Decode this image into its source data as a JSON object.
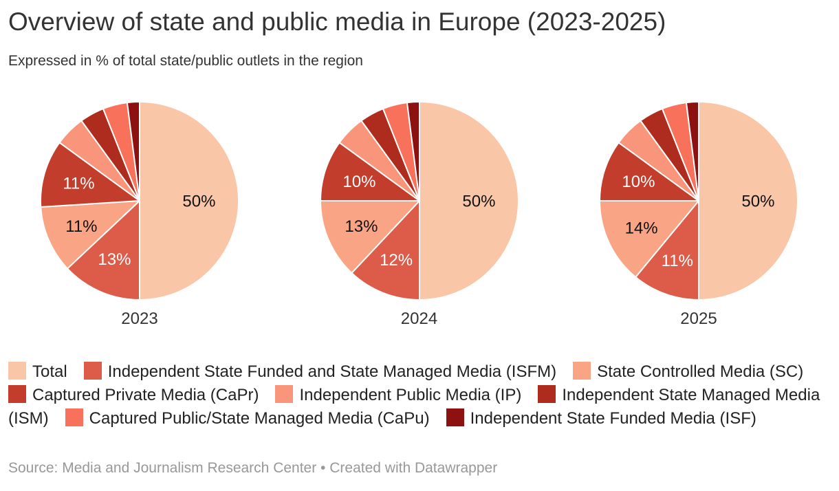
{
  "header": {
    "title": "Overview of state and public media in Europe (2023-2025)",
    "subtitle": "Expressed in % of total state/public outlets in the region"
  },
  "chart_data": {
    "type": "pie",
    "title": "Overview of state and public media in Europe (2023-2025)",
    "subtitle": "Expressed in % of total state/public outlets in the region",
    "unit": "%",
    "slice_order": "clockwise-from-top",
    "legend_position": "bottom",
    "category_ids": [
      "total",
      "isfm",
      "sc",
      "capr",
      "ip",
      "ism",
      "capu",
      "isf"
    ],
    "categories": [
      "Total",
      "Independent State Funded and State Managed Media (ISFM)",
      "State Controlled Media (SC)",
      "Captured Private Media (CaPr)",
      "Independent Public Media (IP)",
      "Independent State Managed Media (ISM)",
      "Captured Public/State Managed Media (CaPu)",
      "Independent State Funded Media (ISF)"
    ],
    "colors": [
      "#F9C6A7",
      "#DC5C49",
      "#F9A585",
      "#C33D2C",
      "#F9957B",
      "#AE2C1D",
      "#F7715B",
      "#8E1111"
    ],
    "label_text_colors": [
      "#111111",
      "#ffffff",
      "#111111",
      "#ffffff",
      "#ffffff",
      "#ffffff",
      "#ffffff",
      "#ffffff"
    ],
    "pies": [
      {
        "label": "2023",
        "values": [
          50,
          13,
          11,
          11,
          5,
          4,
          4,
          2
        ],
        "slice_labels": [
          "50%",
          "13%",
          "11%",
          "11%",
          "",
          "",
          "",
          ""
        ]
      },
      {
        "label": "2024",
        "values": [
          50,
          12,
          13,
          10,
          5,
          4,
          4,
          2
        ],
        "slice_labels": [
          "50%",
          "12%",
          "13%",
          "10%",
          "",
          "",
          "",
          ""
        ]
      },
      {
        "label": "2025",
        "values": [
          50,
          11,
          14,
          10,
          5,
          4,
          4,
          2
        ],
        "slice_labels": [
          "50%",
          "11%",
          "14%",
          "10%",
          "",
          "",
          "",
          ""
        ]
      }
    ]
  },
  "footer": {
    "text": "Source: Media and Journalism Research Center • Created with Datawrapper"
  }
}
